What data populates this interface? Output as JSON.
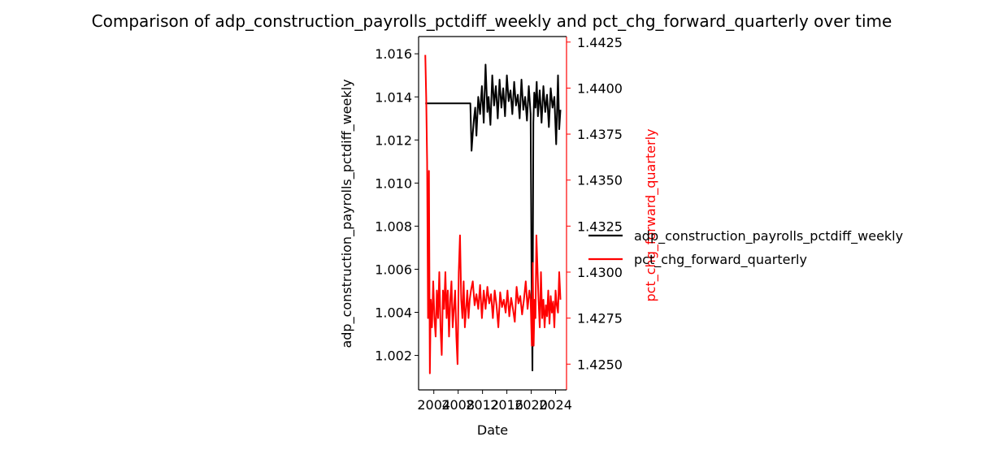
{
  "chart_data": {
    "type": "line",
    "title": "Comparison of adp_construction_payrolls_pctdiff_weekly and pct_chg_forward_quarterly over time",
    "xlabel": "Date",
    "ylabel_left": "adp_construction_payrolls_pctdiff_weekly",
    "ylabel_right": "pct_chg_forward_quarterly",
    "xlim": [
      2001.5,
      2025.8
    ],
    "ylim_left": [
      1.0004,
      1.0168
    ],
    "ylim_right": [
      1.4236,
      1.4428
    ],
    "x_ticks": [
      {
        "value": 2004,
        "label": "2004"
      },
      {
        "value": 2008,
        "label": "2008"
      },
      {
        "value": 2012,
        "label": "2012"
      },
      {
        "value": 2016,
        "label": "2016"
      },
      {
        "value": 2020,
        "label": "2020"
      },
      {
        "value": 2024,
        "label": "2024"
      }
    ],
    "y_ticks_left": [
      {
        "value": 1.002,
        "label": "1.002"
      },
      {
        "value": 1.004,
        "label": "1.004"
      },
      {
        "value": 1.006,
        "label": "1.006"
      },
      {
        "value": 1.008,
        "label": "1.008"
      },
      {
        "value": 1.01,
        "label": "1.010"
      },
      {
        "value": 1.012,
        "label": "1.012"
      },
      {
        "value": 1.014,
        "label": "1.014"
      },
      {
        "value": 1.016,
        "label": "1.016"
      }
    ],
    "y_ticks_right": [
      {
        "value": 1.425,
        "label": "1.4250"
      },
      {
        "value": 1.4275,
        "label": "1.4275"
      },
      {
        "value": 1.43,
        "label": "1.4300"
      },
      {
        "value": 1.4325,
        "label": "1.4325"
      },
      {
        "value": 1.435,
        "label": "1.4350"
      },
      {
        "value": 1.4375,
        "label": "1.4375"
      },
      {
        "value": 1.44,
        "label": "1.4400"
      },
      {
        "value": 1.4425,
        "label": "1.4425"
      }
    ],
    "legend_position": "outside right",
    "grid": false,
    "series": [
      {
        "name": "adp_construction_payrolls_pctdiff_weekly",
        "axis": "left",
        "color": "#000000",
        "x": [
          2002.6,
          2006.0,
          2010.0,
          2010.2,
          2010.4,
          2010.6,
          2010.8,
          2011.0,
          2011.3,
          2011.6,
          2011.9,
          2012.2,
          2012.5,
          2012.8,
          2013.0,
          2013.3,
          2013.6,
          2013.9,
          2014.2,
          2014.5,
          2014.8,
          2015.1,
          2015.4,
          2015.7,
          2016.0,
          2016.3,
          2016.6,
          2016.9,
          2017.2,
          2017.5,
          2017.8,
          2018.1,
          2018.4,
          2018.7,
          2019.0,
          2019.3,
          2019.6,
          2019.9,
          2020.05,
          2020.2,
          2020.35,
          2020.5,
          2020.7,
          2020.9,
          2021.1,
          2021.4,
          2021.7,
          2022.0,
          2022.3,
          2022.6,
          2022.9,
          2023.2,
          2023.5,
          2023.8,
          2024.1,
          2024.4,
          2024.6,
          2024.8
        ],
        "values": [
          1.0137,
          1.0137,
          1.0137,
          1.0115,
          1.0123,
          1.013,
          1.0135,
          1.0122,
          1.014,
          1.0132,
          1.0145,
          1.0128,
          1.0155,
          1.0133,
          1.014,
          1.0127,
          1.015,
          1.0136,
          1.0145,
          1.013,
          1.0148,
          1.0135,
          1.0144,
          1.0131,
          1.015,
          1.0138,
          1.0143,
          1.0132,
          1.0147,
          1.0136,
          1.0141,
          1.013,
          1.0148,
          1.0134,
          1.014,
          1.0129,
          1.0145,
          1.0132,
          1.006,
          1.0013,
          1.0128,
          1.0142,
          1.0135,
          1.0147,
          1.0131,
          1.0143,
          1.0128,
          1.0145,
          1.0133,
          1.0141,
          1.0126,
          1.0144,
          1.0135,
          1.014,
          1.0118,
          1.015,
          1.0125,
          1.0134
        ]
      },
      {
        "name": "pct_chg_forward_quarterly",
        "axis": "right",
        "color": "#ff0000",
        "x": [
          2002.6,
          2002.75,
          2002.9,
          2003.05,
          2003.2,
          2003.35,
          2003.5,
          2003.7,
          2003.9,
          2004.1,
          2004.3,
          2004.5,
          2004.7,
          2004.9,
          2005.1,
          2005.3,
          2005.5,
          2005.7,
          2005.9,
          2006.1,
          2006.3,
          2006.5,
          2006.7,
          2006.9,
          2007.1,
          2007.3,
          2007.5,
          2007.7,
          2007.9,
          2008.1,
          2008.3,
          2008.5,
          2008.7,
          2008.9,
          2009.1,
          2009.3,
          2009.5,
          2009.7,
          2009.9,
          2010.1,
          2010.4,
          2010.7,
          2011.0,
          2011.3,
          2011.6,
          2011.9,
          2012.2,
          2012.5,
          2012.8,
          2013.1,
          2013.4,
          2013.7,
          2014.0,
          2014.3,
          2014.6,
          2014.9,
          2015.2,
          2015.5,
          2015.8,
          2016.1,
          2016.4,
          2016.7,
          2017.0,
          2017.3,
          2017.6,
          2017.9,
          2018.2,
          2018.5,
          2018.8,
          2019.1,
          2019.4,
          2019.7,
          2019.9,
          2020.1,
          2020.25,
          2020.4,
          2020.55,
          2020.7,
          2020.85,
          2021.0,
          2021.2,
          2021.4,
          2021.6,
          2021.8,
          2022.0,
          2022.2,
          2022.4,
          2022.6,
          2022.8,
          2023.0,
          2023.2,
          2023.4,
          2023.6,
          2023.8,
          2024.0,
          2024.2,
          2024.4,
          2024.6,
          2024.8
        ],
        "values": [
          1.4418,
          1.4395,
          1.436,
          1.4275,
          1.4355,
          1.4245,
          1.4285,
          1.427,
          1.4295,
          1.4275,
          1.4265,
          1.429,
          1.4275,
          1.43,
          1.427,
          1.4255,
          1.429,
          1.428,
          1.43,
          1.4275,
          1.429,
          1.4265,
          1.4285,
          1.4295,
          1.427,
          1.428,
          1.429,
          1.4265,
          1.425,
          1.43,
          1.432,
          1.4285,
          1.4275,
          1.4295,
          1.427,
          1.428,
          1.429,
          1.4275,
          1.4285,
          1.429,
          1.4295,
          1.4282,
          1.4288,
          1.428,
          1.4293,
          1.4275,
          1.429,
          1.428,
          1.4292,
          1.4283,
          1.4288,
          1.4275,
          1.429,
          1.4282,
          1.427,
          1.4289,
          1.4281,
          1.4285,
          1.4278,
          1.429,
          1.4276,
          1.4286,
          1.428,
          1.4273,
          1.4292,
          1.4283,
          1.4287,
          1.4277,
          1.4285,
          1.4295,
          1.428,
          1.429,
          1.4285,
          1.426,
          1.4305,
          1.426,
          1.4285,
          1.4275,
          1.432,
          1.4305,
          1.4285,
          1.427,
          1.43,
          1.4275,
          1.4285,
          1.427,
          1.4282,
          1.4276,
          1.429,
          1.4272,
          1.4287,
          1.4278,
          1.4284,
          1.427,
          1.429,
          1.4282,
          1.4278,
          1.43,
          1.4285
        ]
      }
    ]
  }
}
